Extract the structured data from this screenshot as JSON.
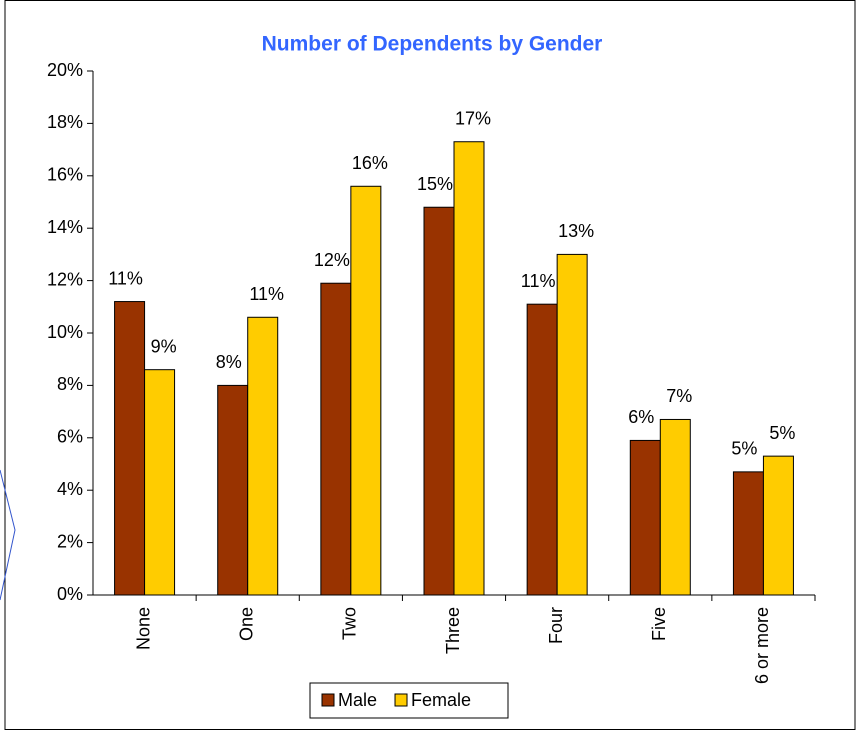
{
  "chart_data": {
    "type": "bar",
    "title": "Number of Dependents by Gender",
    "categories": [
      "None",
      "One",
      "Two",
      "Three",
      "Four",
      "Five",
      "6 or more"
    ],
    "series": [
      {
        "name": "Male",
        "color": "#993300",
        "values": [
          11.2,
          8.0,
          11.9,
          14.8,
          11.1,
          5.9,
          4.7
        ],
        "value_labels": [
          "11%",
          "8%",
          "12%",
          "15%",
          "11%",
          "6%",
          "5%"
        ]
      },
      {
        "name": "Female",
        "color": "#ffcc00",
        "values": [
          8.6,
          10.6,
          15.6,
          17.3,
          13.0,
          6.7,
          5.3
        ],
        "value_labels": [
          "9%",
          "11%",
          "16%",
          "17%",
          "13%",
          "7%",
          "5%"
        ]
      }
    ],
    "ylim": [
      0,
      20
    ],
    "yticks": [
      {
        "value": 0,
        "label": "0%"
      },
      {
        "value": 2,
        "label": "2%"
      },
      {
        "value": 4,
        "label": "4%"
      },
      {
        "value": 6,
        "label": "6%"
      },
      {
        "value": 8,
        "label": "8%"
      },
      {
        "value": 10,
        "label": "10%"
      },
      {
        "value": 12,
        "label": "12%"
      },
      {
        "value": 14,
        "label": "14%"
      },
      {
        "value": 16,
        "label": "16%"
      },
      {
        "value": 18,
        "label": "18%"
      },
      {
        "value": 20,
        "label": "20%"
      }
    ],
    "legend": "bottom"
  }
}
